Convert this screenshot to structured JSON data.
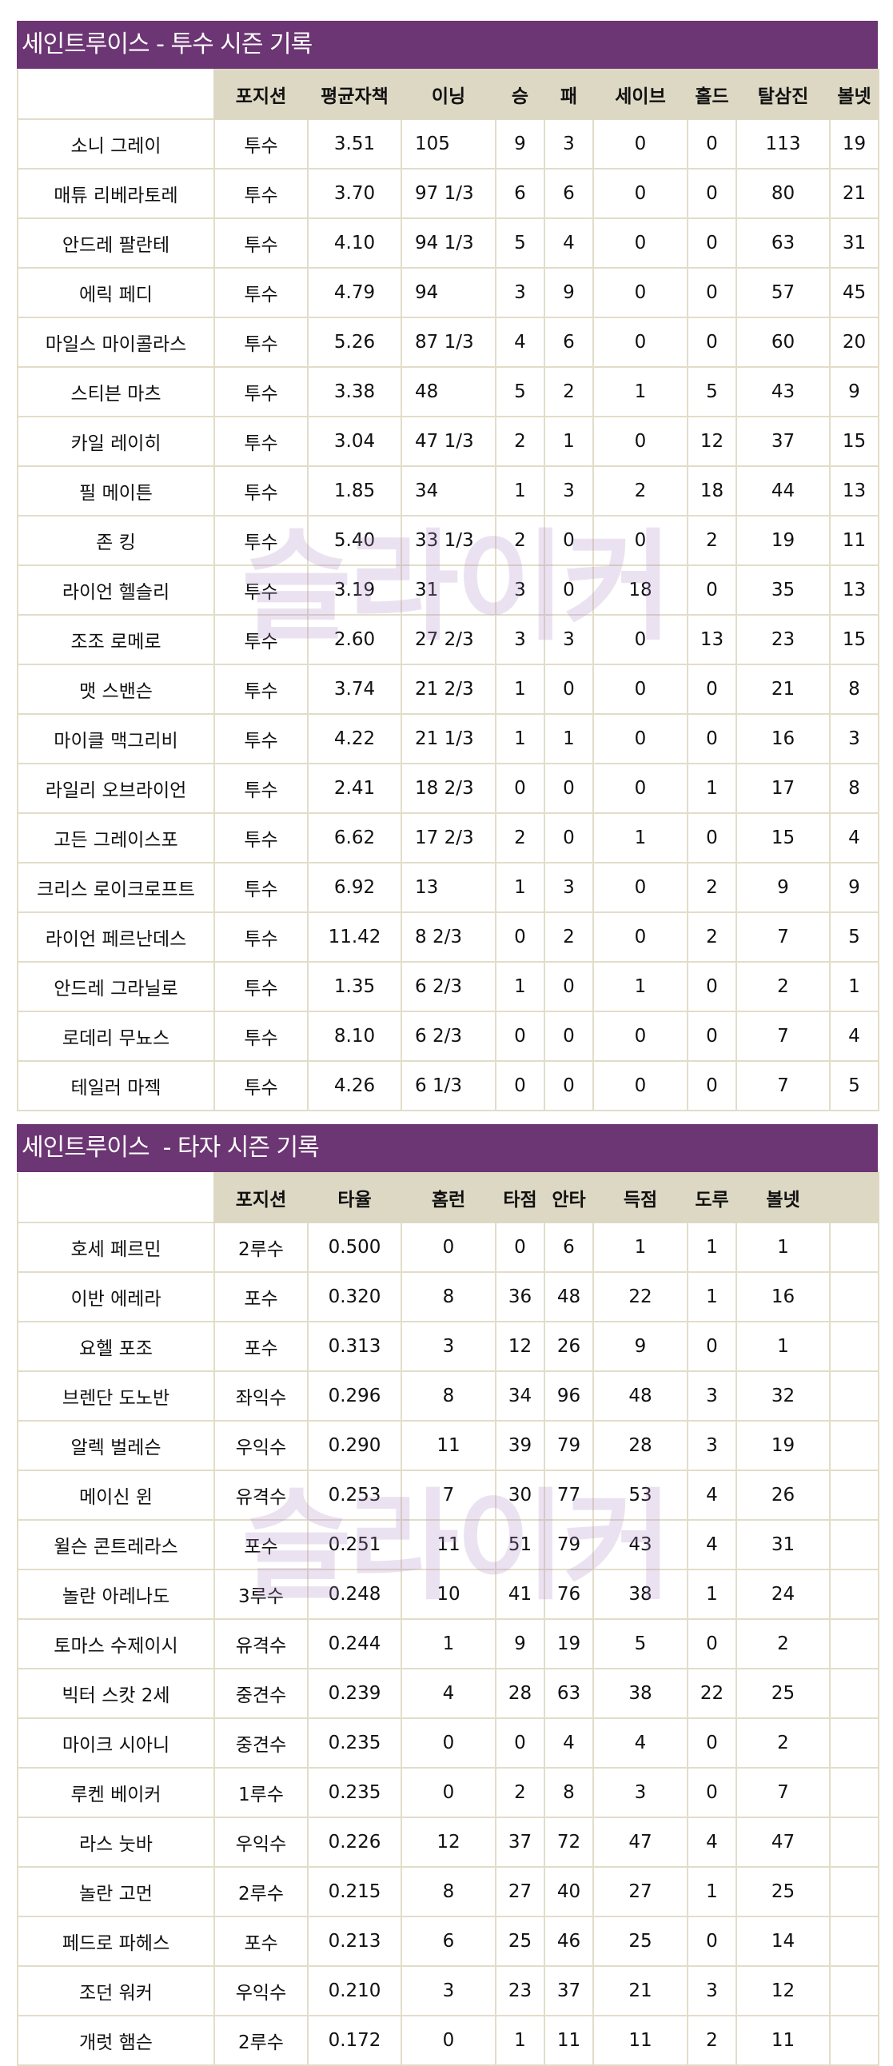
{
  "watermark": "슬라이커",
  "colors": {
    "title_bg": "#6c3573",
    "header_bg": "#ddd8c4",
    "border": "#e2ddc9"
  },
  "pitchers": {
    "title": "세인트루이스 - 투수 시즌 기록",
    "columns": [
      "",
      "포지션",
      "평균자책",
      "이닝",
      "승",
      "패",
      "세이브",
      "홀드",
      "탈삼진",
      "볼넷"
    ],
    "rows": [
      [
        "소니 그레이",
        "투수",
        "3.51",
        "105",
        "9",
        "3",
        "0",
        "0",
        "113",
        "19"
      ],
      [
        "매튜 리베라토레",
        "투수",
        "3.70",
        "97 1/3",
        "6",
        "6",
        "0",
        "0",
        "80",
        "21"
      ],
      [
        "안드레 팔란테",
        "투수",
        "4.10",
        "94 1/3",
        "5",
        "4",
        "0",
        "0",
        "63",
        "31"
      ],
      [
        "에릭 페디",
        "투수",
        "4.79",
        "94",
        "3",
        "9",
        "0",
        "0",
        "57",
        "45"
      ],
      [
        "마일스 마이콜라스",
        "투수",
        "5.26",
        "87 1/3",
        "4",
        "6",
        "0",
        "0",
        "60",
        "20"
      ],
      [
        "스티븐 마츠",
        "투수",
        "3.38",
        "48",
        "5",
        "2",
        "1",
        "5",
        "43",
        "9"
      ],
      [
        "카일 레이히",
        "투수",
        "3.04",
        "47 1/3",
        "2",
        "1",
        "0",
        "12",
        "37",
        "15"
      ],
      [
        "필 메이튼",
        "투수",
        "1.85",
        "34",
        "1",
        "3",
        "2",
        "18",
        "44",
        "13"
      ],
      [
        "존 킹",
        "투수",
        "5.40",
        "33 1/3",
        "2",
        "0",
        "0",
        "2",
        "19",
        "11"
      ],
      [
        "라이언 헬슬리",
        "투수",
        "3.19",
        "31",
        "3",
        "0",
        "18",
        "0",
        "35",
        "13"
      ],
      [
        "조조 로메로",
        "투수",
        "2.60",
        "27 2/3",
        "3",
        "3",
        "0",
        "13",
        "23",
        "15"
      ],
      [
        "맷 스밴슨",
        "투수",
        "3.74",
        "21 2/3",
        "1",
        "0",
        "0",
        "0",
        "21",
        "8"
      ],
      [
        "마이클 맥그리비",
        "투수",
        "4.22",
        "21 1/3",
        "1",
        "1",
        "0",
        "0",
        "16",
        "3"
      ],
      [
        "라일리 오브라이언",
        "투수",
        "2.41",
        "18 2/3",
        "0",
        "0",
        "0",
        "1",
        "17",
        "8"
      ],
      [
        "고든 그레이스포",
        "투수",
        "6.62",
        "17 2/3",
        "2",
        "0",
        "1",
        "0",
        "15",
        "4"
      ],
      [
        "크리스 로이크로프트",
        "투수",
        "6.92",
        "13",
        "1",
        "3",
        "0",
        "2",
        "9",
        "9"
      ],
      [
        "라이언 페르난데스",
        "투수",
        "11.42",
        "8 2/3",
        "0",
        "2",
        "0",
        "2",
        "7",
        "5"
      ],
      [
        "안드레 그라닐로",
        "투수",
        "1.35",
        "6 2/3",
        "1",
        "0",
        "1",
        "0",
        "2",
        "1"
      ],
      [
        "로데리 무뇨스",
        "투수",
        "8.10",
        "6 2/3",
        "0",
        "0",
        "0",
        "0",
        "7",
        "4"
      ],
      [
        "테일러 마젝",
        "투수",
        "4.26",
        "6 1/3",
        "0",
        "0",
        "0",
        "0",
        "7",
        "5"
      ]
    ]
  },
  "batters": {
    "title": "세인트루이스  - 타자 시즌 기록",
    "columns": [
      "",
      "포지션",
      "타율",
      "홈런",
      "타점",
      "안타",
      "득점",
      "도루",
      "볼넷",
      ""
    ],
    "rows": [
      [
        "호세 페르민",
        "2루수",
        "0.500",
        "0",
        "0",
        "6",
        "1",
        "1",
        "1",
        ""
      ],
      [
        "이반 에레라",
        "포수",
        "0.320",
        "8",
        "36",
        "48",
        "22",
        "1",
        "16",
        ""
      ],
      [
        "요헬 포조",
        "포수",
        "0.313",
        "3",
        "12",
        "26",
        "9",
        "0",
        "1",
        ""
      ],
      [
        "브렌단 도노반",
        "좌익수",
        "0.296",
        "8",
        "34",
        "96",
        "48",
        "3",
        "32",
        ""
      ],
      [
        "알렉 벌레슨",
        "우익수",
        "0.290",
        "11",
        "39",
        "79",
        "28",
        "3",
        "19",
        ""
      ],
      [
        "메이신 윈",
        "유격수",
        "0.253",
        "7",
        "30",
        "77",
        "53",
        "4",
        "26",
        ""
      ],
      [
        "윌슨 콘트레라스",
        "포수",
        "0.251",
        "11",
        "51",
        "79",
        "43",
        "4",
        "31",
        ""
      ],
      [
        "놀란 아레나도",
        "3루수",
        "0.248",
        "10",
        "41",
        "76",
        "38",
        "1",
        "24",
        ""
      ],
      [
        "토마스 수제이시",
        "유격수",
        "0.244",
        "1",
        "9",
        "19",
        "5",
        "0",
        "2",
        ""
      ],
      [
        "빅터 스캇 2세",
        "중견수",
        "0.239",
        "4",
        "28",
        "63",
        "38",
        "22",
        "25",
        ""
      ],
      [
        "마이크 시아니",
        "중견수",
        "0.235",
        "0",
        "0",
        "4",
        "4",
        "0",
        "2",
        ""
      ],
      [
        "루켄 베이커",
        "1루수",
        "0.235",
        "0",
        "2",
        "8",
        "3",
        "0",
        "7",
        ""
      ],
      [
        "라스 눗바",
        "우익수",
        "0.226",
        "12",
        "37",
        "72",
        "47",
        "4",
        "47",
        ""
      ],
      [
        "놀란 고먼",
        "2루수",
        "0.215",
        "8",
        "27",
        "40",
        "27",
        "1",
        "25",
        ""
      ],
      [
        "페드로 파헤스",
        "포수",
        "0.213",
        "6",
        "25",
        "46",
        "25",
        "0",
        "14",
        ""
      ],
      [
        "조던 워커",
        "우익수",
        "0.210",
        "3",
        "23",
        "37",
        "21",
        "3",
        "12",
        ""
      ],
      [
        "개럿 햄슨",
        "2루수",
        "0.172",
        "0",
        "1",
        "11",
        "11",
        "2",
        "11",
        ""
      ]
    ]
  }
}
